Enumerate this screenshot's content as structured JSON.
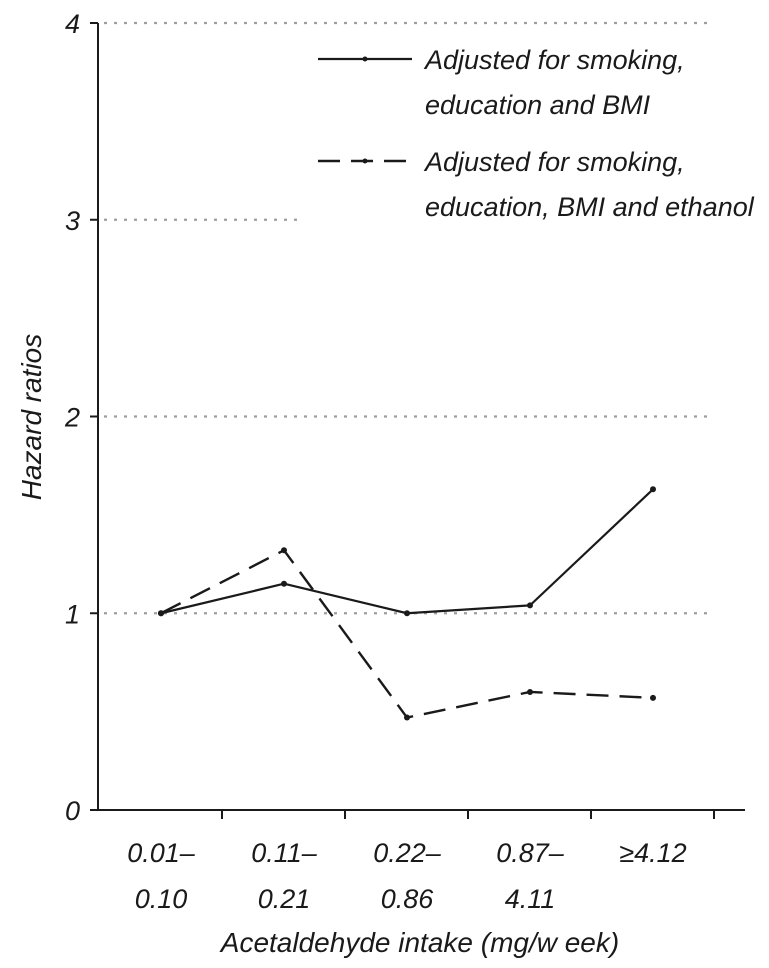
{
  "chart_data": {
    "type": "line",
    "title": "",
    "xlabel": "Acetaldehyde intake (mg/w eek)",
    "ylabel": "Hazard ratios",
    "categories": [
      [
        "0.01–",
        "0.10"
      ],
      [
        "0.11–",
        "0.21"
      ],
      [
        "0.22–",
        "0.86"
      ],
      [
        "0.87–",
        "4.11"
      ],
      [
        "≥4.12",
        ""
      ]
    ],
    "ylim": [
      0,
      4
    ],
    "yticks": [
      "0",
      "1",
      "2",
      "3",
      "4"
    ],
    "grid": "horizontal dotted",
    "legend_position": "top-right",
    "series": [
      {
        "name_lines": [
          "Adjusted for smoking,",
          "education and BMI"
        ],
        "style": "solid",
        "values": [
          1.0,
          1.15,
          1.0,
          1.04,
          1.63
        ]
      },
      {
        "name_lines": [
          "Adjusted for smoking,",
          "education, BMI and ethanol"
        ],
        "style": "dashed",
        "values": [
          1.0,
          1.32,
          0.47,
          0.6,
          0.57
        ]
      }
    ],
    "colors": {
      "line": "#1a1a1a",
      "grid": "#9e9e9e"
    }
  }
}
